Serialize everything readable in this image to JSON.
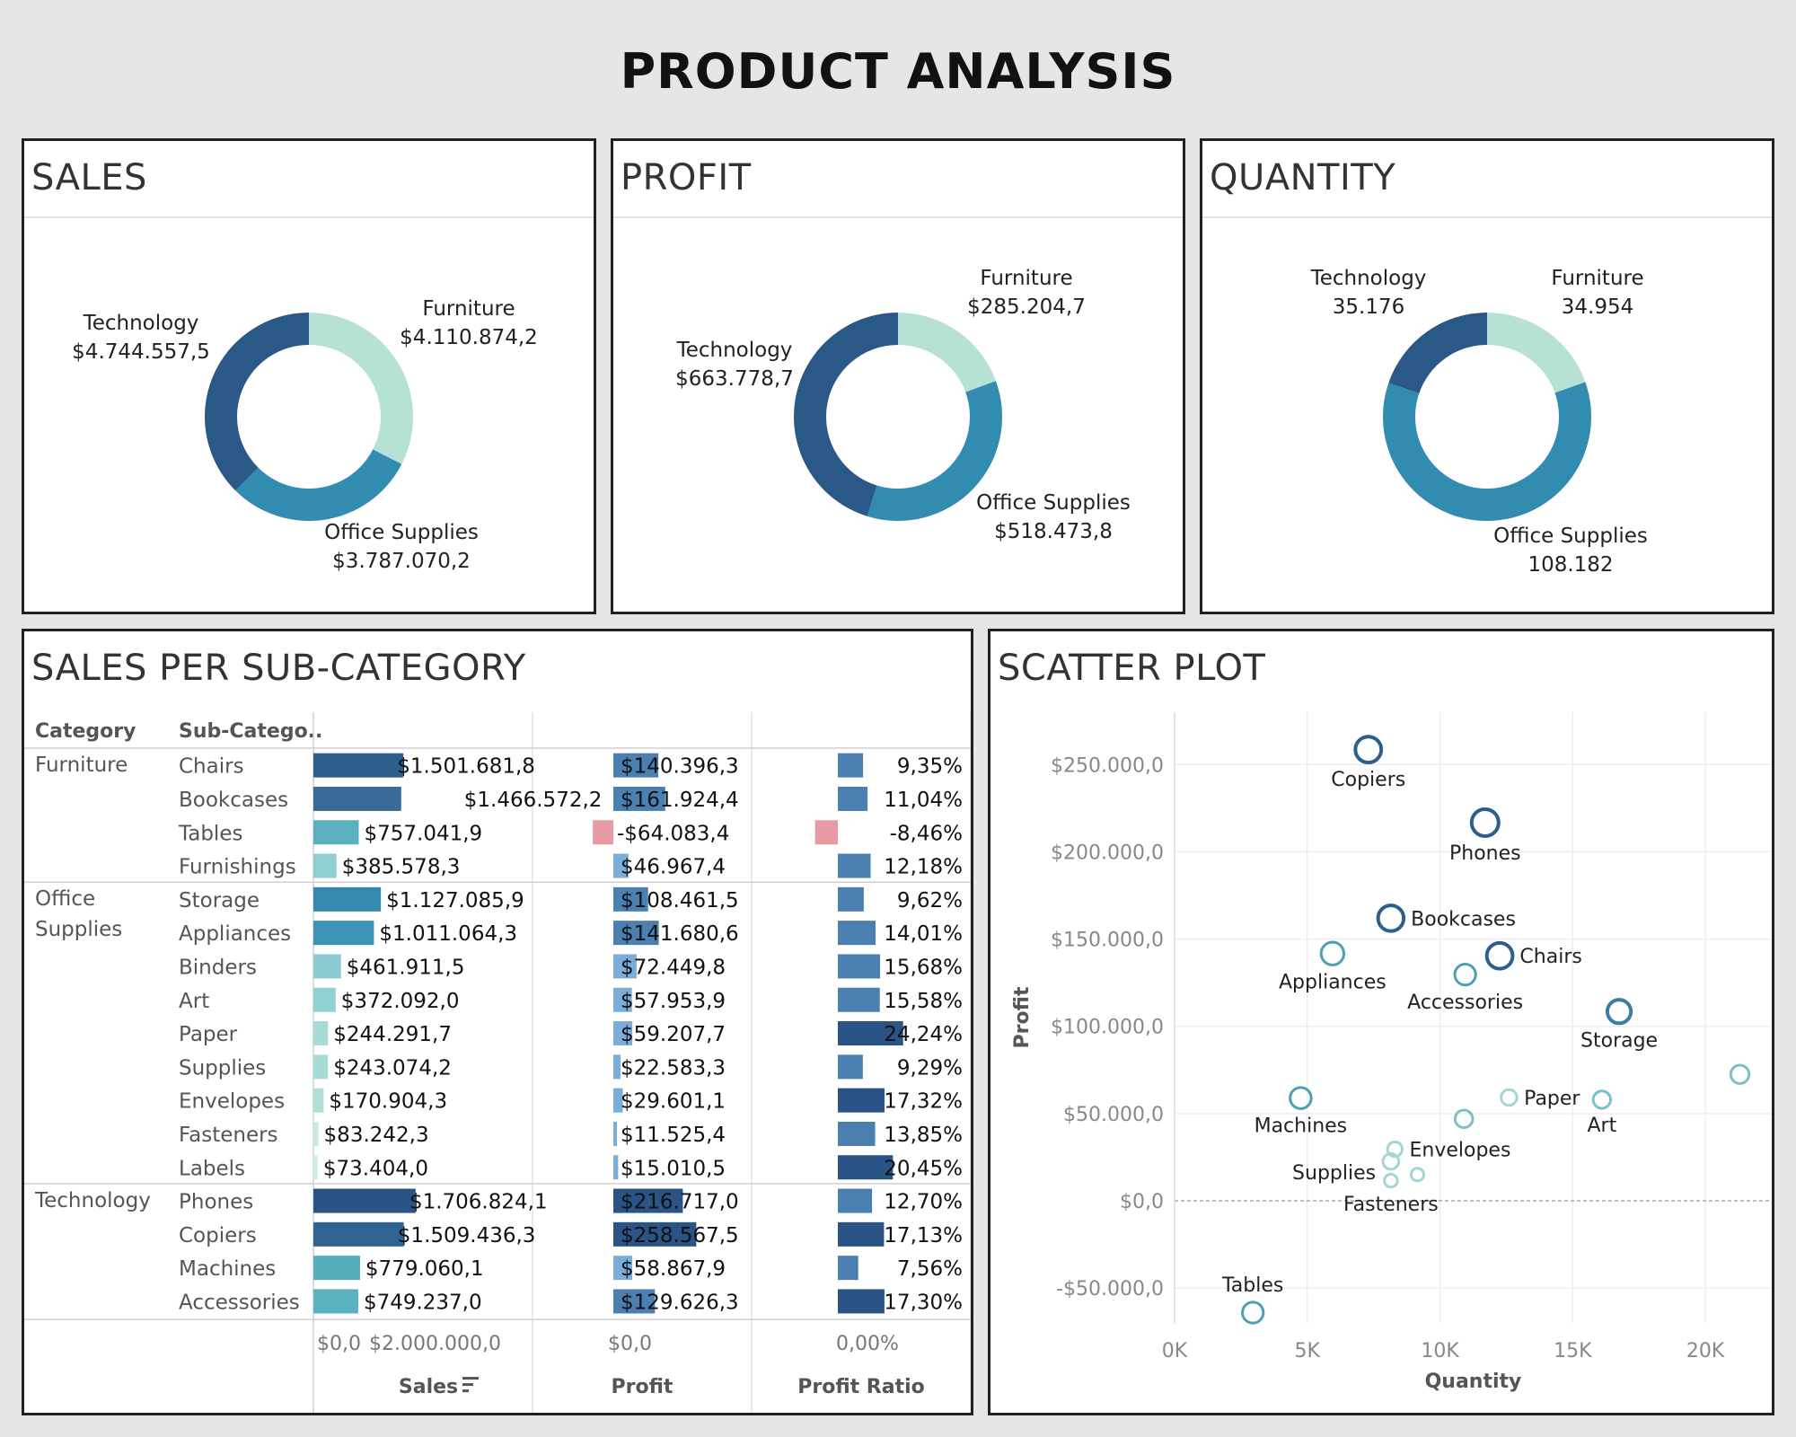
{
  "title": "PRODUCT ANALYSIS",
  "colors": {
    "Furniture": "#b6e2d6",
    "Office Supplies": "#328bb0",
    "Technology": "#2a5987",
    "negative": "#e89aa4"
  },
  "donuts": [
    {
      "title": "SALES",
      "chart_data": {
        "type": "pie",
        "categories": [
          "Furniture",
          "Office Supplies",
          "Technology"
        ],
        "values": [
          4110874.2,
          3787070.2,
          4744557.5
        ],
        "value_labels": [
          "$4.110.874,2",
          "$3.787.070,2",
          "$4.744.557,5"
        ]
      }
    },
    {
      "title": "PROFIT",
      "chart_data": {
        "type": "pie",
        "categories": [
          "Furniture",
          "Office Supplies",
          "Technology"
        ],
        "values": [
          285204.7,
          518473.8,
          663778.7
        ],
        "value_labels": [
          "$285.204,7",
          "$518.473,8",
          "$663.778,7"
        ]
      }
    },
    {
      "title": "QUANTITY",
      "chart_data": {
        "type": "pie",
        "categories": [
          "Furniture",
          "Office Supplies",
          "Technology"
        ],
        "values": [
          34954,
          108182,
          35176
        ],
        "value_labels": [
          "34.954",
          "108.182",
          "35.176"
        ]
      }
    }
  ],
  "subcategory_table": {
    "title": "SALES PER SUB-CATEGORY",
    "col_category": "Category",
    "col_subcategory": "Sub-Catego..",
    "measures": [
      "Sales",
      "Profit",
      "Profit Ratio"
    ],
    "axis_ticks": {
      "sales": [
        "$0,0",
        "$2.000.000,0"
      ],
      "profit": [
        "$0,0"
      ],
      "ratio": [
        "0,00%"
      ]
    },
    "chart_data": {
      "type": "bar",
      "groups": [
        {
          "category": "Furniture",
          "category_lines": [
            "Furniture"
          ],
          "rows": [
            {
              "sub": "Chairs",
              "sales": 1501681.8,
              "sales_label": "$1.501.681,8",
              "profit": 140396.3,
              "profit_label": "$140.396,3",
              "ratio": 9.35,
              "ratio_label": "9,35%"
            },
            {
              "sub": "Bookcases",
              "sales": 1466572.2,
              "sales_label": "$1.466.572,2",
              "profit": 161924.4,
              "profit_label": "$161.924,4",
              "ratio": 11.04,
              "ratio_label": "11,04%"
            },
            {
              "sub": "Tables",
              "sales": 757041.9,
              "sales_label": "$757.041,9",
              "profit": -64083.4,
              "profit_label": "-$64.083,4",
              "ratio": -8.46,
              "ratio_label": "-8,46%"
            },
            {
              "sub": "Furnishings",
              "sales": 385578.3,
              "sales_label": "$385.578,3",
              "profit": 46967.4,
              "profit_label": "$46.967,4",
              "ratio": 12.18,
              "ratio_label": "12,18%"
            }
          ]
        },
        {
          "category": "Office Supplies",
          "category_lines": [
            "Office",
            "Supplies"
          ],
          "rows": [
            {
              "sub": "Storage",
              "sales": 1127085.9,
              "sales_label": "$1.127.085,9",
              "profit": 108461.5,
              "profit_label": "$108.461,5",
              "ratio": 9.62,
              "ratio_label": "9,62%"
            },
            {
              "sub": "Appliances",
              "sales": 1011064.3,
              "sales_label": "$1.011.064,3",
              "profit": 141680.6,
              "profit_label": "$141.680,6",
              "ratio": 14.01,
              "ratio_label": "14,01%"
            },
            {
              "sub": "Binders",
              "sales": 461911.5,
              "sales_label": "$461.911,5",
              "profit": 72449.8,
              "profit_label": "$72.449,8",
              "ratio": 15.68,
              "ratio_label": "15,68%"
            },
            {
              "sub": "Art",
              "sales": 372092.0,
              "sales_label": "$372.092,0",
              "profit": 57953.9,
              "profit_label": "$57.953,9",
              "ratio": 15.58,
              "ratio_label": "15,58%"
            },
            {
              "sub": "Paper",
              "sales": 244291.7,
              "sales_label": "$244.291,7",
              "profit": 59207.7,
              "profit_label": "$59.207,7",
              "ratio": 24.24,
              "ratio_label": "24,24%"
            },
            {
              "sub": "Supplies",
              "sales": 243074.2,
              "sales_label": "$243.074,2",
              "profit": 22583.3,
              "profit_label": "$22.583,3",
              "ratio": 9.29,
              "ratio_label": "9,29%"
            },
            {
              "sub": "Envelopes",
              "sales": 170904.3,
              "sales_label": "$170.904,3",
              "profit": 29601.1,
              "profit_label": "$29.601,1",
              "ratio": 17.32,
              "ratio_label": "17,32%"
            },
            {
              "sub": "Fasteners",
              "sales": 83242.3,
              "sales_label": "$83.242,3",
              "profit": 11525.4,
              "profit_label": "$11.525,4",
              "ratio": 13.85,
              "ratio_label": "13,85%"
            },
            {
              "sub": "Labels",
              "sales": 73404.0,
              "sales_label": "$73.404,0",
              "profit": 15010.5,
              "profit_label": "$15.010,5",
              "ratio": 20.45,
              "ratio_label": "20,45%"
            }
          ]
        },
        {
          "category": "Technology",
          "category_lines": [
            "Technology"
          ],
          "rows": [
            {
              "sub": "Phones",
              "sales": 1706824.1,
              "sales_label": "$1.706.824,1",
              "profit": 216717.0,
              "profit_label": "$216.717,0",
              "ratio": 12.7,
              "ratio_label": "12,70%"
            },
            {
              "sub": "Copiers",
              "sales": 1509436.3,
              "sales_label": "$1.509.436,3",
              "profit": 258567.5,
              "profit_label": "$258.567,5",
              "ratio": 17.13,
              "ratio_label": "17,13%"
            },
            {
              "sub": "Machines",
              "sales": 779060.1,
              "sales_label": "$779.060,1",
              "profit": 58867.9,
              "profit_label": "$58.867,9",
              "ratio": 7.56,
              "ratio_label": "7,56%"
            },
            {
              "sub": "Accessories",
              "sales": 749237.0,
              "sales_label": "$749.237,0",
              "profit": 129626.3,
              "profit_label": "$129.626,3",
              "ratio": 17.3,
              "ratio_label": "17,30%"
            }
          ]
        }
      ]
    }
  },
  "scatter": {
    "title": "SCATTER PLOT",
    "chart_data": {
      "type": "scatter",
      "xlabel": "Quantity",
      "ylabel": "Profit",
      "xlim": [
        0,
        22500
      ],
      "ylim": [
        -70000,
        280000
      ],
      "x_ticks": [
        0,
        5000,
        10000,
        15000,
        20000
      ],
      "x_tick_labels": [
        "0K",
        "5K",
        "10K",
        "15K",
        "20K"
      ],
      "y_ticks": [
        -50000,
        0,
        50000,
        100000,
        150000,
        200000,
        250000
      ],
      "y_tick_labels": [
        "-$50.000,0",
        "$0,0",
        "$50.000,0",
        "$100.000,0",
        "$150.000,0",
        "$200.000,0",
        "$250.000,0"
      ],
      "points": [
        {
          "label": "Copiers",
          "x": 7300,
          "y": 258567.5,
          "sales": 1509436.3,
          "label_pos": "below"
        },
        {
          "label": "Phones",
          "x": 11700,
          "y": 216717.0,
          "sales": 1706824.1,
          "label_pos": "below"
        },
        {
          "label": "Bookcases",
          "x": 8150,
          "y": 161924.4,
          "sales": 1466572.2,
          "label_pos": "right"
        },
        {
          "label": "Chairs",
          "x": 12250,
          "y": 140396.3,
          "sales": 1501681.8,
          "label_pos": "right"
        },
        {
          "label": "Appliances",
          "x": 5950,
          "y": 141680.6,
          "sales": 1011064.3,
          "label_pos": "below"
        },
        {
          "label": "Accessories",
          "x": 10950,
          "y": 129626.3,
          "sales": 749237.0,
          "label_pos": "below"
        },
        {
          "label": "Storage",
          "x": 16750,
          "y": 108461.5,
          "sales": 1127085.9,
          "label_pos": "below"
        },
        {
          "label": "",
          "x": 21300,
          "y": 72449.8,
          "sales": 461911.5,
          "label_pos": "none"
        },
        {
          "label": "Machines",
          "x": 4750,
          "y": 58867.9,
          "sales": 779060.1,
          "label_pos": "below"
        },
        {
          "label": "Paper",
          "x": 12600,
          "y": 59207.7,
          "sales": 244291.7,
          "label_pos": "right"
        },
        {
          "label": "Art",
          "x": 16100,
          "y": 57953.9,
          "sales": 372092.0,
          "label_pos": "below"
        },
        {
          "label": "",
          "x": 10900,
          "y": 46967.4,
          "sales": 385578.3,
          "label_pos": "none"
        },
        {
          "label": "Envelopes",
          "x": 8300,
          "y": 29601.1,
          "sales": 170904.3,
          "label_pos": "right"
        },
        {
          "label": "Supplies",
          "x": 8150,
          "y": 22583.3,
          "sales": 243074.2,
          "label_pos": "left"
        },
        {
          "label": "",
          "x": 9150,
          "y": 15010.5,
          "sales": 73404.0,
          "label_pos": "none"
        },
        {
          "label": "Fasteners",
          "x": 8150,
          "y": 11525.4,
          "sales": 83242.3,
          "label_pos": "below"
        },
        {
          "label": "Tables",
          "x": 2950,
          "y": -64083.4,
          "sales": 757041.9,
          "label_pos": "above"
        }
      ]
    }
  },
  "table_colors": {
    "Furniture": [
      "#2e5f8c",
      "#3a6b98",
      "#5ab0bf",
      "#8fcfd3"
    ],
    "Office Supplies": [
      "#3589ad",
      "#3d93b6",
      "#8bcbd1",
      "#91d0d4",
      "#a7dbd8",
      "#a7dbd8",
      "#b0dfda",
      "#c7ebe2",
      "#cdeee4"
    ],
    "Technology": [
      "#2a5386",
      "#2f6391",
      "#56aebd",
      "#5ab1bf"
    ]
  },
  "profit_colors": {
    "Furniture": [
      "#4a7fb0",
      "#4a7fb0",
      "#e89aa4",
      "#7aaed8"
    ],
    "Office Supplies": [
      "#4a7fb0",
      "#4a7fb0",
      "#7aaed8",
      "#7aaed8",
      "#7aaed8",
      "#7aaed8",
      "#7aaed8",
      "#7aaed8",
      "#7aaed8"
    ],
    "Technology": [
      "#2a5386",
      "#2a5386",
      "#7aaed8",
      "#4a7fb0"
    ]
  }
}
